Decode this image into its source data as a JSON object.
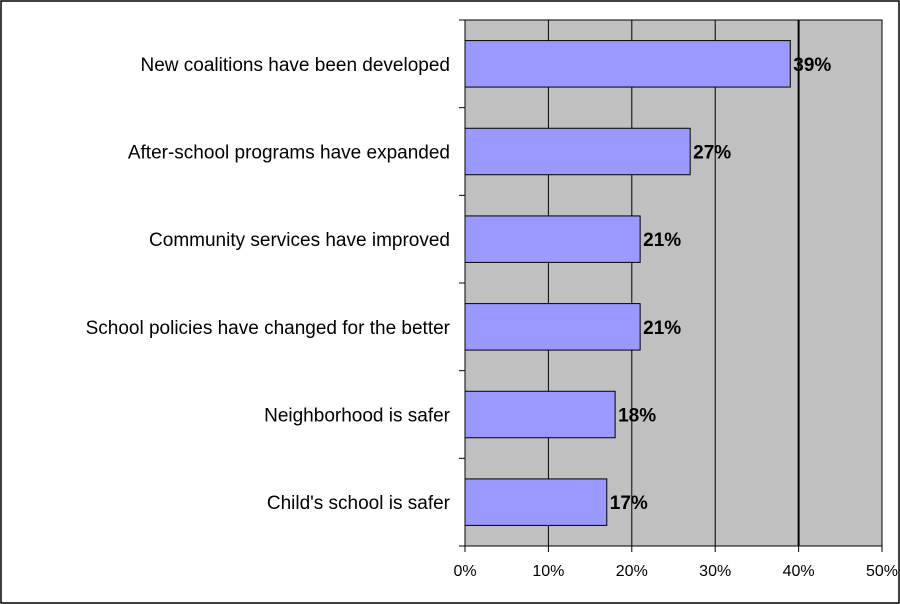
{
  "chart_data": {
    "type": "bar",
    "orientation": "horizontal",
    "categories": [
      "New coalitions have been developed",
      "After-school programs have expanded",
      "Community services have improved",
      "School policies have changed for the better",
      "Neighborhood is safer",
      "Child's school is safer"
    ],
    "values": [
      39,
      27,
      21,
      21,
      18,
      17
    ],
    "data_labels": [
      "39%",
      "27%",
      "21%",
      "21%",
      "18%",
      "17%"
    ],
    "xlim": [
      0,
      50
    ],
    "x_ticks": [
      0,
      10,
      20,
      30,
      40,
      50
    ],
    "x_tick_labels": [
      "0%",
      "10%",
      "20%",
      "30%",
      "40%",
      "50%"
    ],
    "title": "",
    "xlabel": "",
    "ylabel": "",
    "grid": true,
    "legend": "none",
    "colors": {
      "bar_fill": "#9999ff",
      "bar_stroke": "#000000",
      "plot_background": "#c0c0c0",
      "frame": "#000000"
    }
  }
}
